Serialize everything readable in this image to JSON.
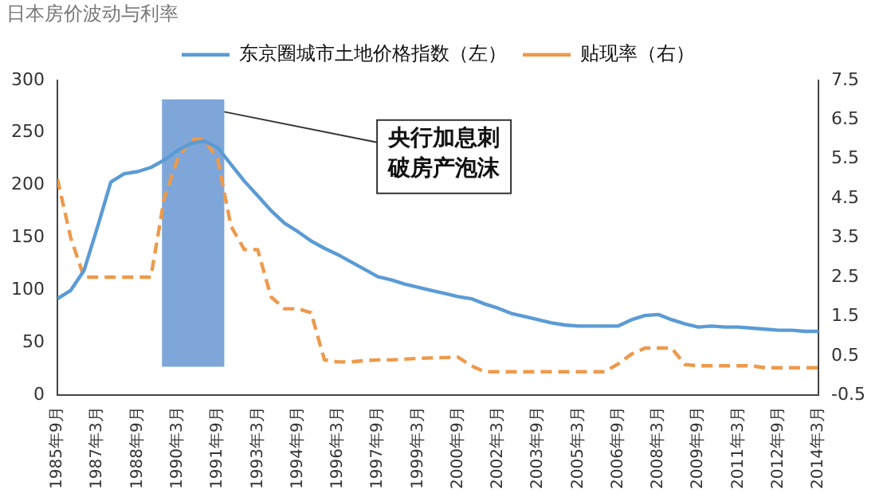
{
  "chart_data": {
    "type": "line",
    "title": "日本房价波动与利率",
    "x": [
      "1985-09",
      "1986-03",
      "1986-09",
      "1987-03",
      "1987-09",
      "1988-03",
      "1988-09",
      "1989-03",
      "1989-09",
      "1990-03",
      "1990-09",
      "1991-03",
      "1991-09",
      "1992-03",
      "1992-09",
      "1993-03",
      "1993-09",
      "1994-03",
      "1994-09",
      "1995-03",
      "1995-09",
      "1996-03",
      "1996-09",
      "1997-03",
      "1997-09",
      "1998-03",
      "1998-09",
      "1999-03",
      "1999-09",
      "2000-03",
      "2000-09",
      "2001-03",
      "2001-09",
      "2002-03",
      "2002-09",
      "2003-03",
      "2003-09",
      "2004-03",
      "2004-09",
      "2005-03",
      "2005-09",
      "2006-03",
      "2006-09",
      "2007-03",
      "2007-09",
      "2008-03",
      "2008-09",
      "2009-03",
      "2009-09",
      "2010-03",
      "2010-09",
      "2011-03",
      "2011-09",
      "2012-03",
      "2012-09",
      "2013-03",
      "2013-09",
      "2014-03"
    ],
    "series": [
      {
        "name": "东京圈城市土地价格指数（左）",
        "color": "#5b9bd5",
        "line_style": "solid",
        "values": [
          92,
          100,
          119,
          160,
          203,
          211,
          213,
          217,
          224,
          233,
          240,
          242,
          236,
          220,
          204,
          190,
          176,
          164,
          156,
          147,
          140,
          134,
          127,
          120,
          113,
          110,
          106,
          103,
          100,
          97,
          94,
          92,
          87,
          83,
          78,
          75,
          72,
          69,
          67,
          66,
          66,
          66,
          66,
          72,
          76,
          77,
          72,
          68,
          65,
          66,
          65,
          65,
          64,
          63,
          62,
          62,
          61,
          61
        ]
      },
      {
        "name": "贴现率（右）",
        "color": "#ed9a4c",
        "line_style": "dashed",
        "axis": "y2",
        "values": [
          5.0,
          3.5,
          2.5,
          2.5,
          2.5,
          2.5,
          2.5,
          2.5,
          4.5,
          5.5,
          6.0,
          6.0,
          5.5,
          3.8,
          3.2,
          3.2,
          2.0,
          1.7,
          1.7,
          1.6,
          0.4,
          0.35,
          0.35,
          0.38,
          0.4,
          0.4,
          0.42,
          0.44,
          0.45,
          0.46,
          0.47,
          0.25,
          0.1,
          0.1,
          0.1,
          0.1,
          0.1,
          0.1,
          0.1,
          0.1,
          0.1,
          0.1,
          0.3,
          0.55,
          0.7,
          0.7,
          0.7,
          0.28,
          0.25,
          0.25,
          0.25,
          0.25,
          0.25,
          0.2,
          0.2,
          0.2,
          0.2,
          0.2
        ]
      }
    ],
    "xlim": [
      "1985-09",
      "2014-03"
    ],
    "xticks": [
      {
        "value": "1985-09",
        "label": "1985年9月"
      },
      {
        "value": "1987-03",
        "label": "1987年3月"
      },
      {
        "value": "1988-09",
        "label": "1988年9月"
      },
      {
        "value": "1990-03",
        "label": "1990年3月"
      },
      {
        "value": "1991-09",
        "label": "1991年9月"
      },
      {
        "value": "1993-03",
        "label": "1993年3月"
      },
      {
        "value": "1994-09",
        "label": "1994年9月"
      },
      {
        "value": "1996-03",
        "label": "1996年3月"
      },
      {
        "value": "1997-09",
        "label": "1997年9月"
      },
      {
        "value": "1999-03",
        "label": "1999年3月"
      },
      {
        "value": "2000-09",
        "label": "2000年9月"
      },
      {
        "value": "2002-03",
        "label": "2002年3月"
      },
      {
        "value": "2003-09",
        "label": "2003年9月"
      },
      {
        "value": "2005-03",
        "label": "2005年3月"
      },
      {
        "value": "2006-09",
        "label": "2006年9月"
      },
      {
        "value": "2008-03",
        "label": "2008年3月"
      },
      {
        "value": "2009-09",
        "label": "2009年9月"
      },
      {
        "value": "2011-03",
        "label": "2011年3月"
      },
      {
        "value": "2012-09",
        "label": "2012年9月"
      },
      {
        "value": "2014-03",
        "label": "2014年3月"
      }
    ],
    "ylim": [
      0,
      300
    ],
    "yticks": [
      0,
      50,
      100,
      150,
      200,
      250,
      300
    ],
    "y2lim": [
      -0.5,
      7.5
    ],
    "y2ticks": [
      -0.5,
      0.5,
      1.5,
      2.5,
      3.5,
      4.5,
      5.5,
      6.5,
      7.5
    ],
    "bands": [
      {
        "axis": "x",
        "from": "1989-08",
        "to": "1991-12",
        "color": "#7fa6d8"
      }
    ],
    "annotations": [
      {
        "text": "央行加息刺破房产泡沫",
        "x": "1991-12",
        "y": 270
      }
    ],
    "grid": false,
    "legend": "top",
    "marker": "none"
  }
}
